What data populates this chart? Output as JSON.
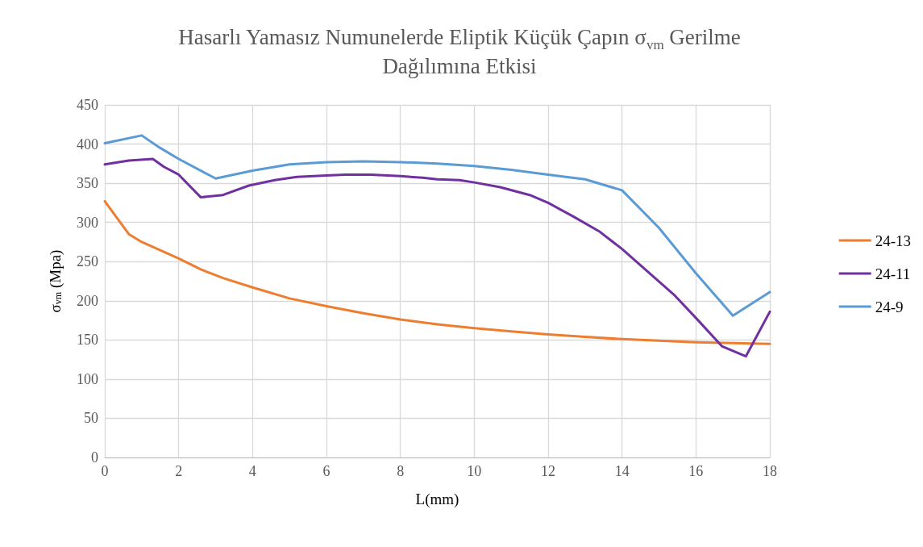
{
  "chart_data": {
    "type": "line",
    "title": "Hasarlı Yamasız Numunelerde Eliptik Küçük Çapın σ$_{vm}$ Gerilme Dağılımına Etkisi",
    "xlabel": "L(mm)",
    "ylabel": "σ$_{vm}$ (Mpa)",
    "xlim": [
      0,
      18
    ],
    "xticks": [
      0,
      2,
      4,
      6,
      8,
      10,
      12,
      14,
      16,
      18
    ],
    "ylim": [
      0,
      450
    ],
    "yticks": [
      0,
      50,
      100,
      150,
      200,
      250,
      300,
      350,
      400,
      450
    ],
    "grid": true,
    "legend": "right",
    "marker": "none",
    "line_style": "solid",
    "series": [
      {
        "name": "24-13",
        "color": "#ed7d31",
        "x": [
          0,
          0.65,
          1,
          2,
          2.6,
          3.2,
          4,
          5,
          6,
          7,
          8,
          9,
          10,
          11,
          12,
          13,
          14,
          15,
          16,
          17,
          18
        ],
        "values": [
          327,
          285,
          275,
          254,
          240,
          229,
          217,
          203,
          193,
          184,
          176,
          170,
          165,
          161,
          157,
          154,
          151,
          149,
          147,
          146,
          145
        ]
      },
      {
        "name": "24-11",
        "color": "#7030a0",
        "x": [
          0,
          0.65,
          1.3,
          1.6,
          2,
          2.6,
          3.2,
          3.9,
          4.6,
          5.2,
          6,
          6.5,
          7.2,
          8,
          8.6,
          9,
          9.6,
          10,
          10.7,
          11.5,
          12,
          12.7,
          13.4,
          14,
          14.7,
          15.4,
          16,
          16.7,
          17.35,
          18
        ],
        "values": [
          374,
          379,
          381,
          371,
          361,
          332,
          335,
          347,
          354,
          358,
          360,
          361,
          361,
          359,
          357,
          355,
          354,
          351,
          345,
          335,
          325,
          307,
          288,
          266,
          237,
          208,
          178,
          142,
          129,
          186
        ]
      },
      {
        "name": "24-9",
        "color": "#5b9bd5",
        "x": [
          0,
          1,
          1.5,
          2,
          3,
          4,
          5,
          6,
          7,
          8,
          9,
          10,
          11,
          12,
          13,
          14,
          15,
          16,
          17,
          18
        ],
        "values": [
          401,
          411,
          395,
          381,
          356,
          366,
          374,
          377,
          378,
          377,
          375,
          372,
          367,
          361,
          355,
          341,
          293,
          235,
          181,
          211
        ]
      }
    ]
  }
}
